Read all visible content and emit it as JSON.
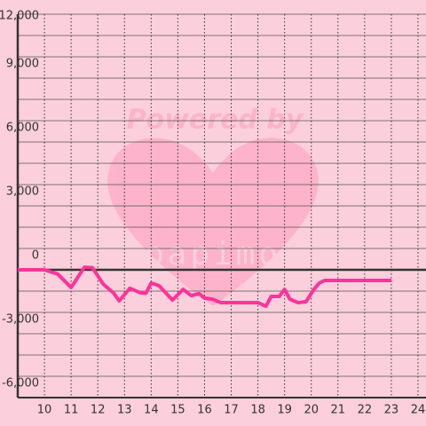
{
  "chart_data": {
    "type": "line",
    "watermark": "Powered by",
    "watermark_brand": "papimo",
    "x": [
      9,
      10,
      10.5,
      11,
      11.5,
      11.8,
      12.2,
      12.6,
      12.8,
      13.2,
      13.6,
      13.8,
      14,
      14.3,
      14.8,
      15.2,
      15.5,
      15.8,
      16,
      16.3,
      16.6,
      18,
      18.3,
      18.5,
      18.8,
      19,
      19.2,
      19.5,
      19.8,
      20.1,
      20.3,
      20.5,
      23
    ],
    "series": [
      {
        "color": "#ff3399",
        "values": [
          0,
          0,
          -200,
          -830,
          120,
          100,
          -670,
          -1100,
          -1460,
          -870,
          -1080,
          -1100,
          -620,
          -750,
          -1420,
          -920,
          -1210,
          -1120,
          -1330,
          -1380,
          -1540,
          -1540,
          -1710,
          -1250,
          -1250,
          -920,
          -1380,
          -1540,
          -1500,
          -920,
          -620,
          -500,
          -500
        ]
      }
    ],
    "xlim": [
      9,
      24.3
    ],
    "ylim": [
      -6000,
      12000
    ],
    "xticks": [
      10,
      11,
      12,
      13,
      14,
      15,
      16,
      17,
      18,
      19,
      20,
      21,
      22,
      23,
      24
    ],
    "yticks": [
      {
        "value": -6000,
        "label": "-6,000"
      },
      {
        "value": -3000,
        "label": "-3,000"
      },
      0,
      {
        "value": 3000,
        "label": "3,000"
      },
      {
        "value": 6000,
        "label": "6,000"
      },
      {
        "value": 9000,
        "label": "9,000"
      },
      {
        "value": 12000,
        "label": "12,000"
      }
    ],
    "ygrid": [
      -5000,
      -4000,
      -2000,
      -1000,
      1000,
      2000,
      4000,
      5000,
      7000,
      8000,
      10000,
      11000
    ],
    "grid": true
  }
}
